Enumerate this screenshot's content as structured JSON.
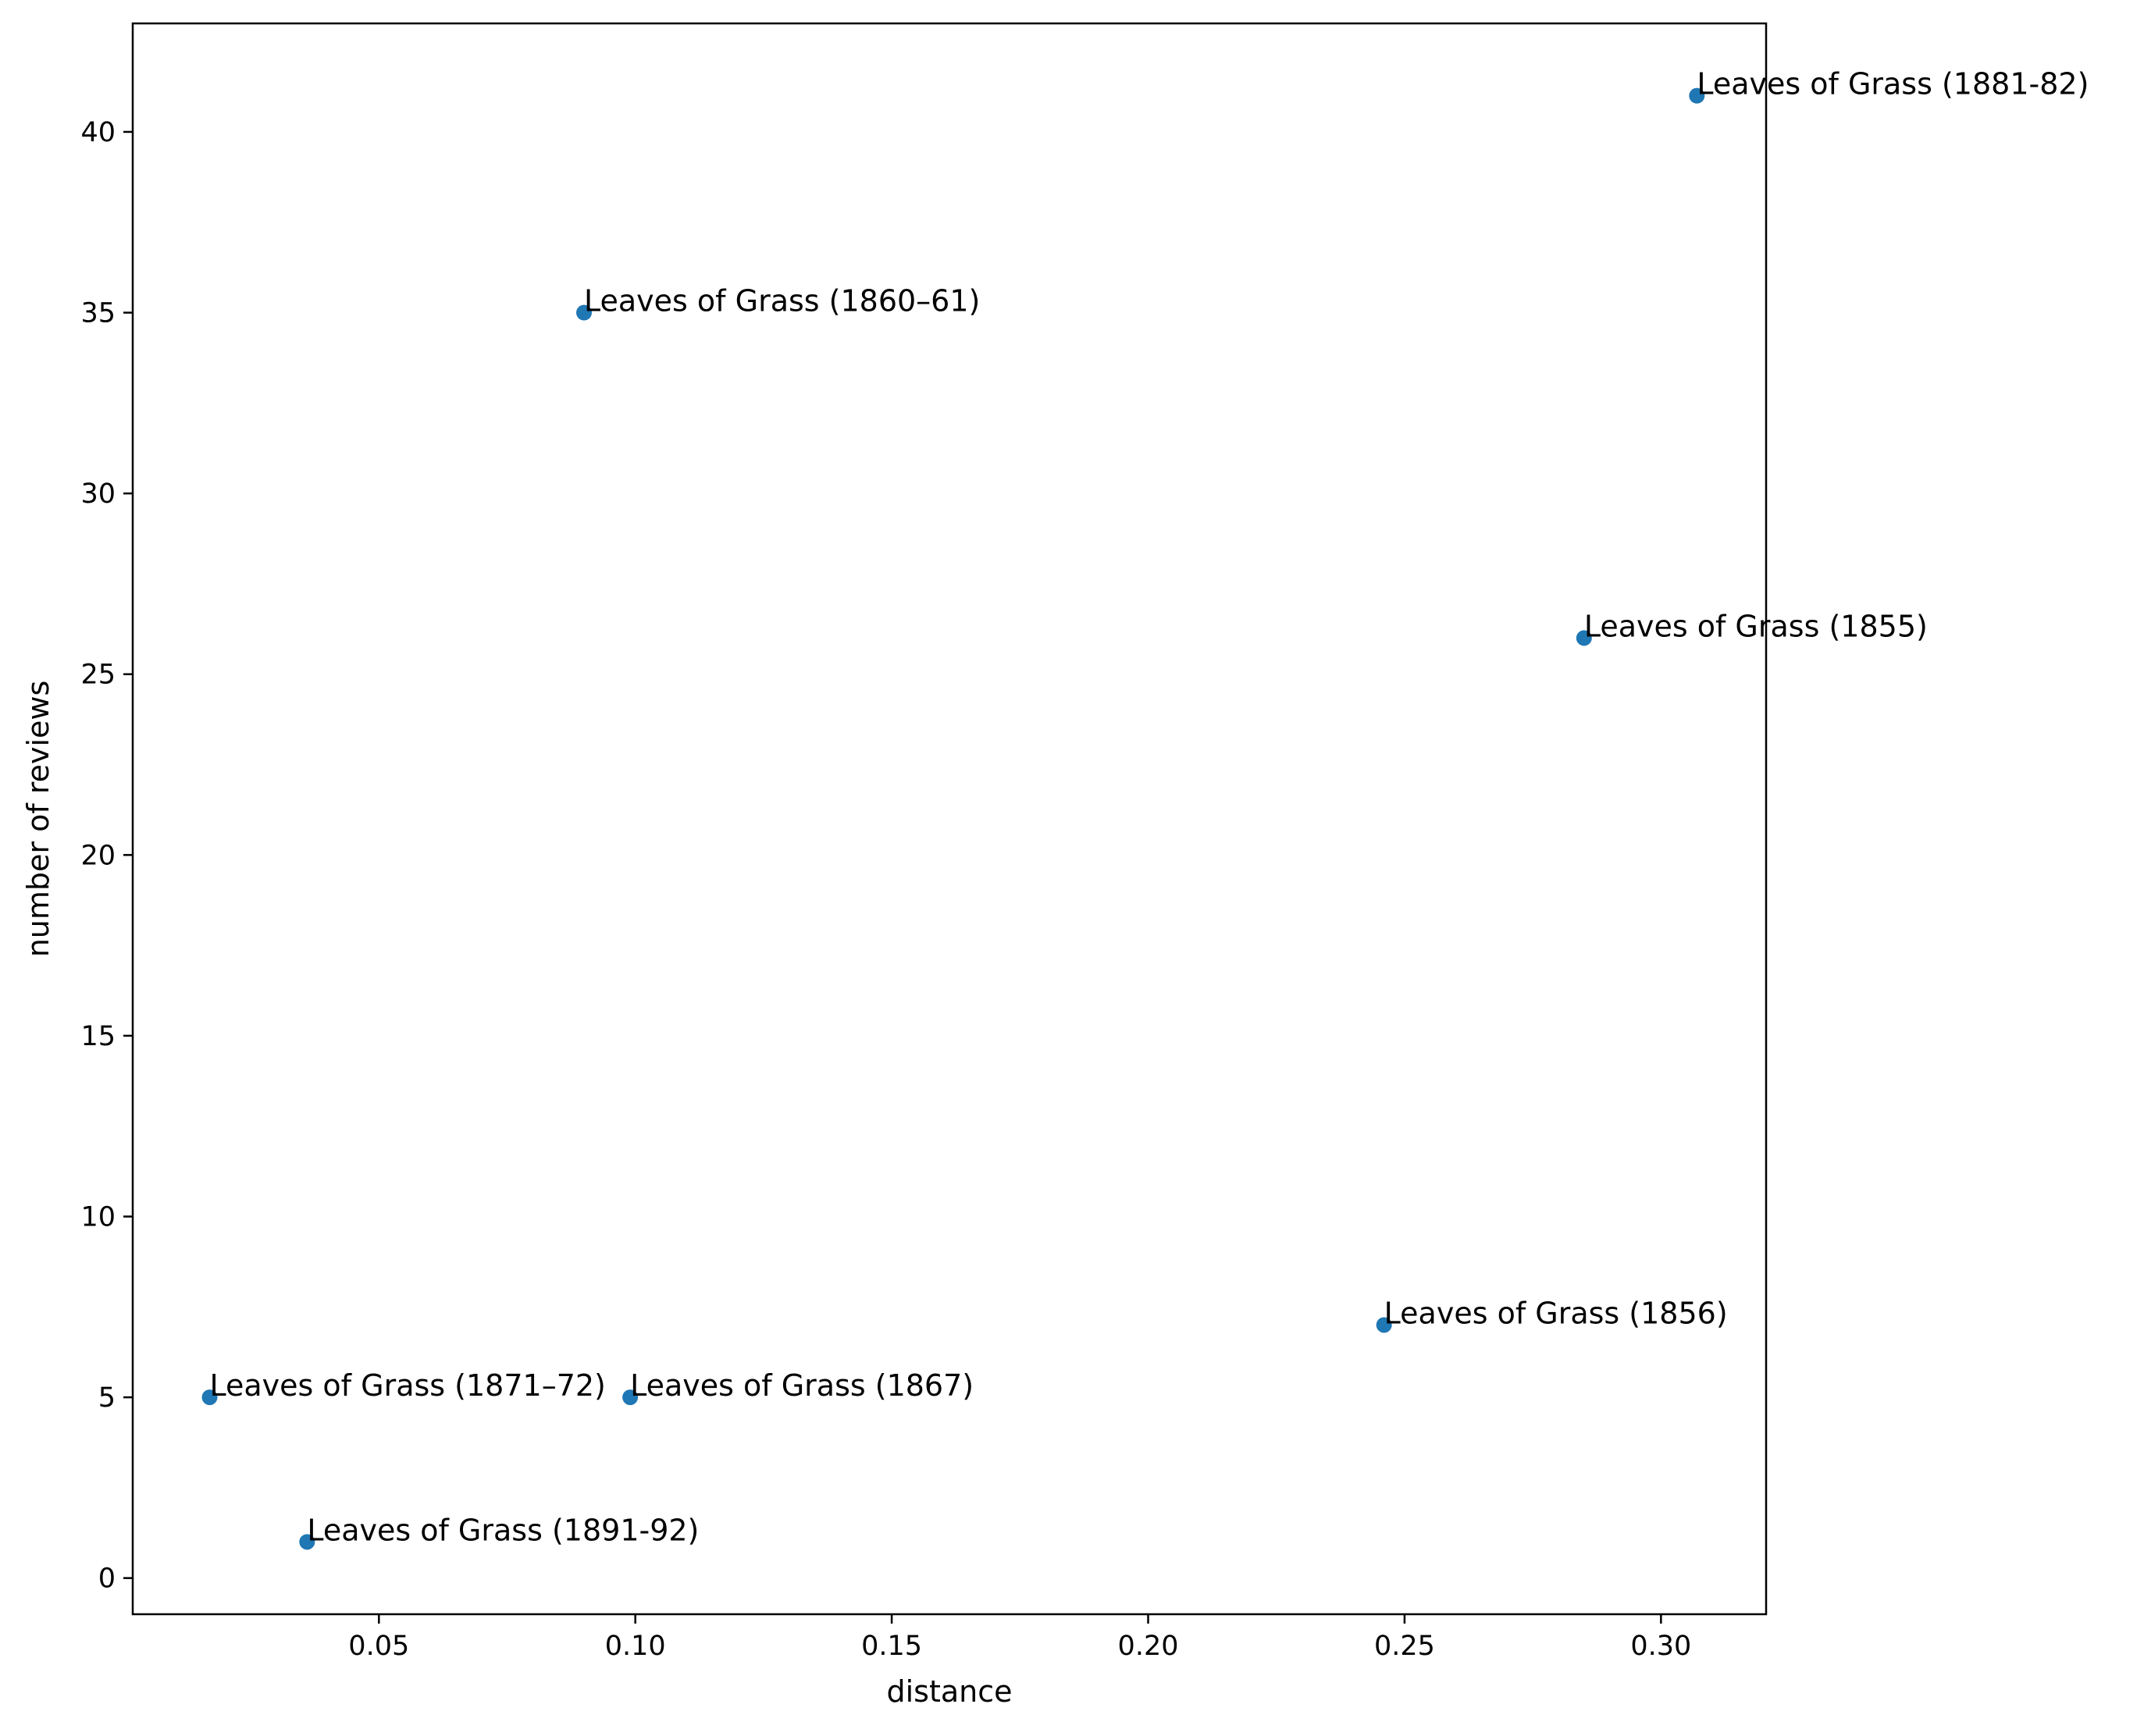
{
  "chart_data": {
    "type": "scatter",
    "title": "",
    "xlabel": "distance",
    "ylabel": "number of reviews",
    "xlim": [
      0.002,
      0.3205
    ],
    "ylim": [
      -1.0,
      43.0
    ],
    "xticks": [
      0.05,
      0.1,
      0.15,
      0.2,
      0.25,
      0.3
    ],
    "xtick_labels": [
      "0.05",
      "0.10",
      "0.15",
      "0.20",
      "0.25",
      "0.30"
    ],
    "yticks": [
      0,
      5,
      10,
      15,
      20,
      25,
      30,
      35,
      40
    ],
    "ytick_labels": [
      "0",
      "5",
      "10",
      "15",
      "20",
      "25",
      "30",
      "35",
      "40"
    ],
    "grid": false,
    "marker_color": "#1f77b4",
    "points": [
      {
        "label": "Leaves of Grass (1881-82)",
        "x": 0.307,
        "y": 41
      },
      {
        "label": "Leaves of Grass (1860–61)",
        "x": 0.09,
        "y": 35
      },
      {
        "label": "Leaves of Grass (1855)",
        "x": 0.285,
        "y": 26
      },
      {
        "label": "Leaves of Grass (1856)",
        "x": 0.246,
        "y": 7
      },
      {
        "label": "Leaves of Grass (1871–72)",
        "x": 0.017,
        "y": 5
      },
      {
        "label": "Leaves of Grass (1867)",
        "x": 0.099,
        "y": 5
      },
      {
        "label": "Leaves of Grass (1891-92)",
        "x": 0.036,
        "y": 1
      }
    ]
  }
}
